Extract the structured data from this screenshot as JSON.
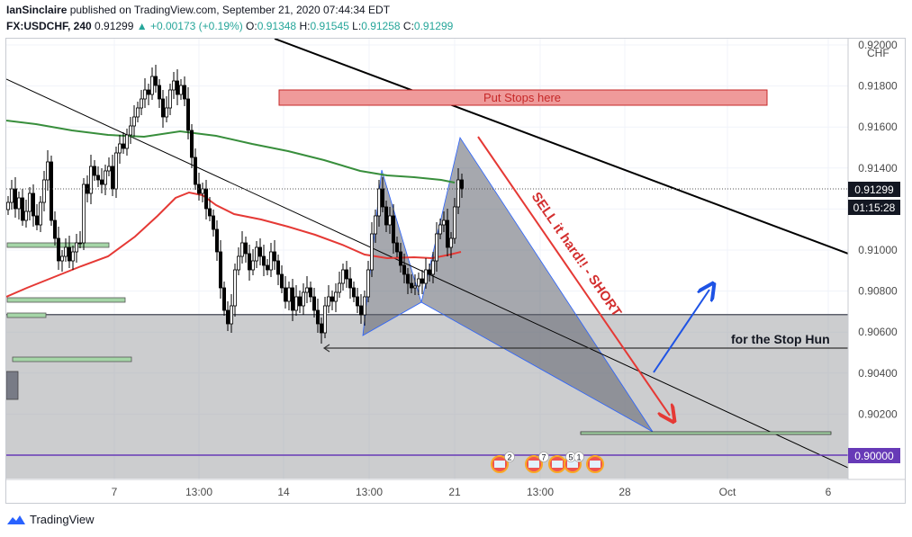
{
  "header": {
    "line1": {
      "author": "IanSinclaire",
      "text": " published on TradingView.com, September 21, 2020 07:44:34 EDT"
    },
    "line2": {
      "symbol": "FX:USDCHF, 240",
      "last": " 0.91299 ",
      "change": "▲ +0.00173 (+0.19%)",
      "o_label": " O:",
      "o": "0.91348",
      "h_label": " H:",
      "h": "0.91545",
      "l_label": " L:",
      "l": "0.91258",
      "c_label": " C:",
      "c": "0.91299"
    }
  },
  "chart_data": {
    "type": "candlestick",
    "currency_label": "CHF",
    "y_ticks": [
      "0.92000",
      "0.91800",
      "0.91600",
      "0.91400",
      "0.91200",
      "0.91000",
      "0.90800",
      "0.90600",
      "0.90400",
      "0.90200",
      "0.90000"
    ],
    "x_ticks": [
      "7",
      "13:00",
      "14",
      "13:00",
      "21",
      "13:00",
      "28",
      "Oct",
      "6"
    ],
    "price_label": "0.91299",
    "countdown_label": "01:15:28",
    "level_label": "0.90000",
    "annotations": {
      "stops": "Put Stops here",
      "sell": "SELL it hard!! - SHORT",
      "stop_hunt": "for the Stop Hun"
    },
    "event_badges": [
      "2",
      "7",
      "5",
      "1"
    ],
    "colors": {
      "up_candle": "#ffffff",
      "down_candle": "#000000",
      "ma_green": "#388e3c",
      "ma_red": "#e53935",
      "stops_box": "#ef9a9a",
      "level_line": "#673ab7",
      "pattern_fill": "#787b86",
      "arrow_red": "#e53935",
      "arrow_blue": "#1e53e5"
    }
  },
  "footer": {
    "brand": "TradingView"
  }
}
